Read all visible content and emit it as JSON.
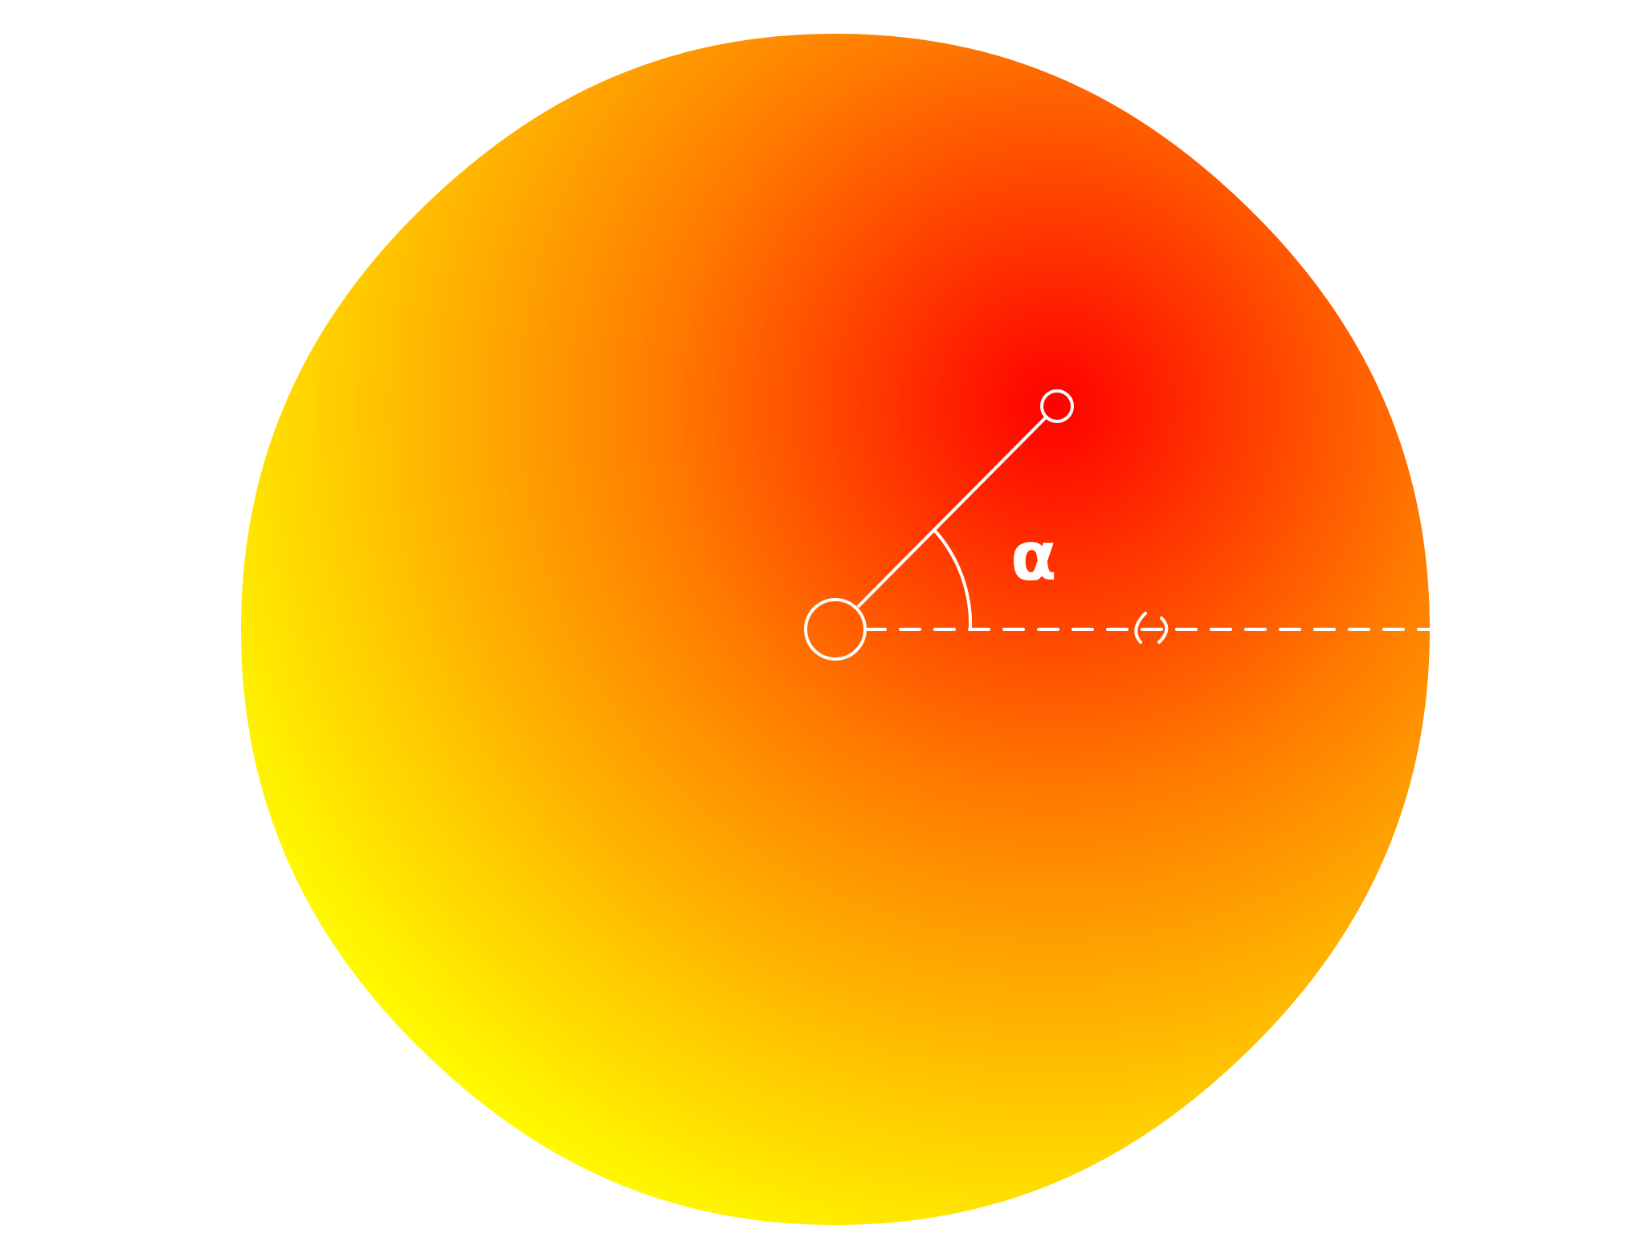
{
  "diagram": {
    "angle_label": "α",
    "colors": {
      "background": "#ffffff",
      "gradient_center": "#ff0000",
      "gradient_mid": "#ff7a00",
      "gradient_edge": "#ffff00",
      "stroke": "#ffffff"
    }
  }
}
